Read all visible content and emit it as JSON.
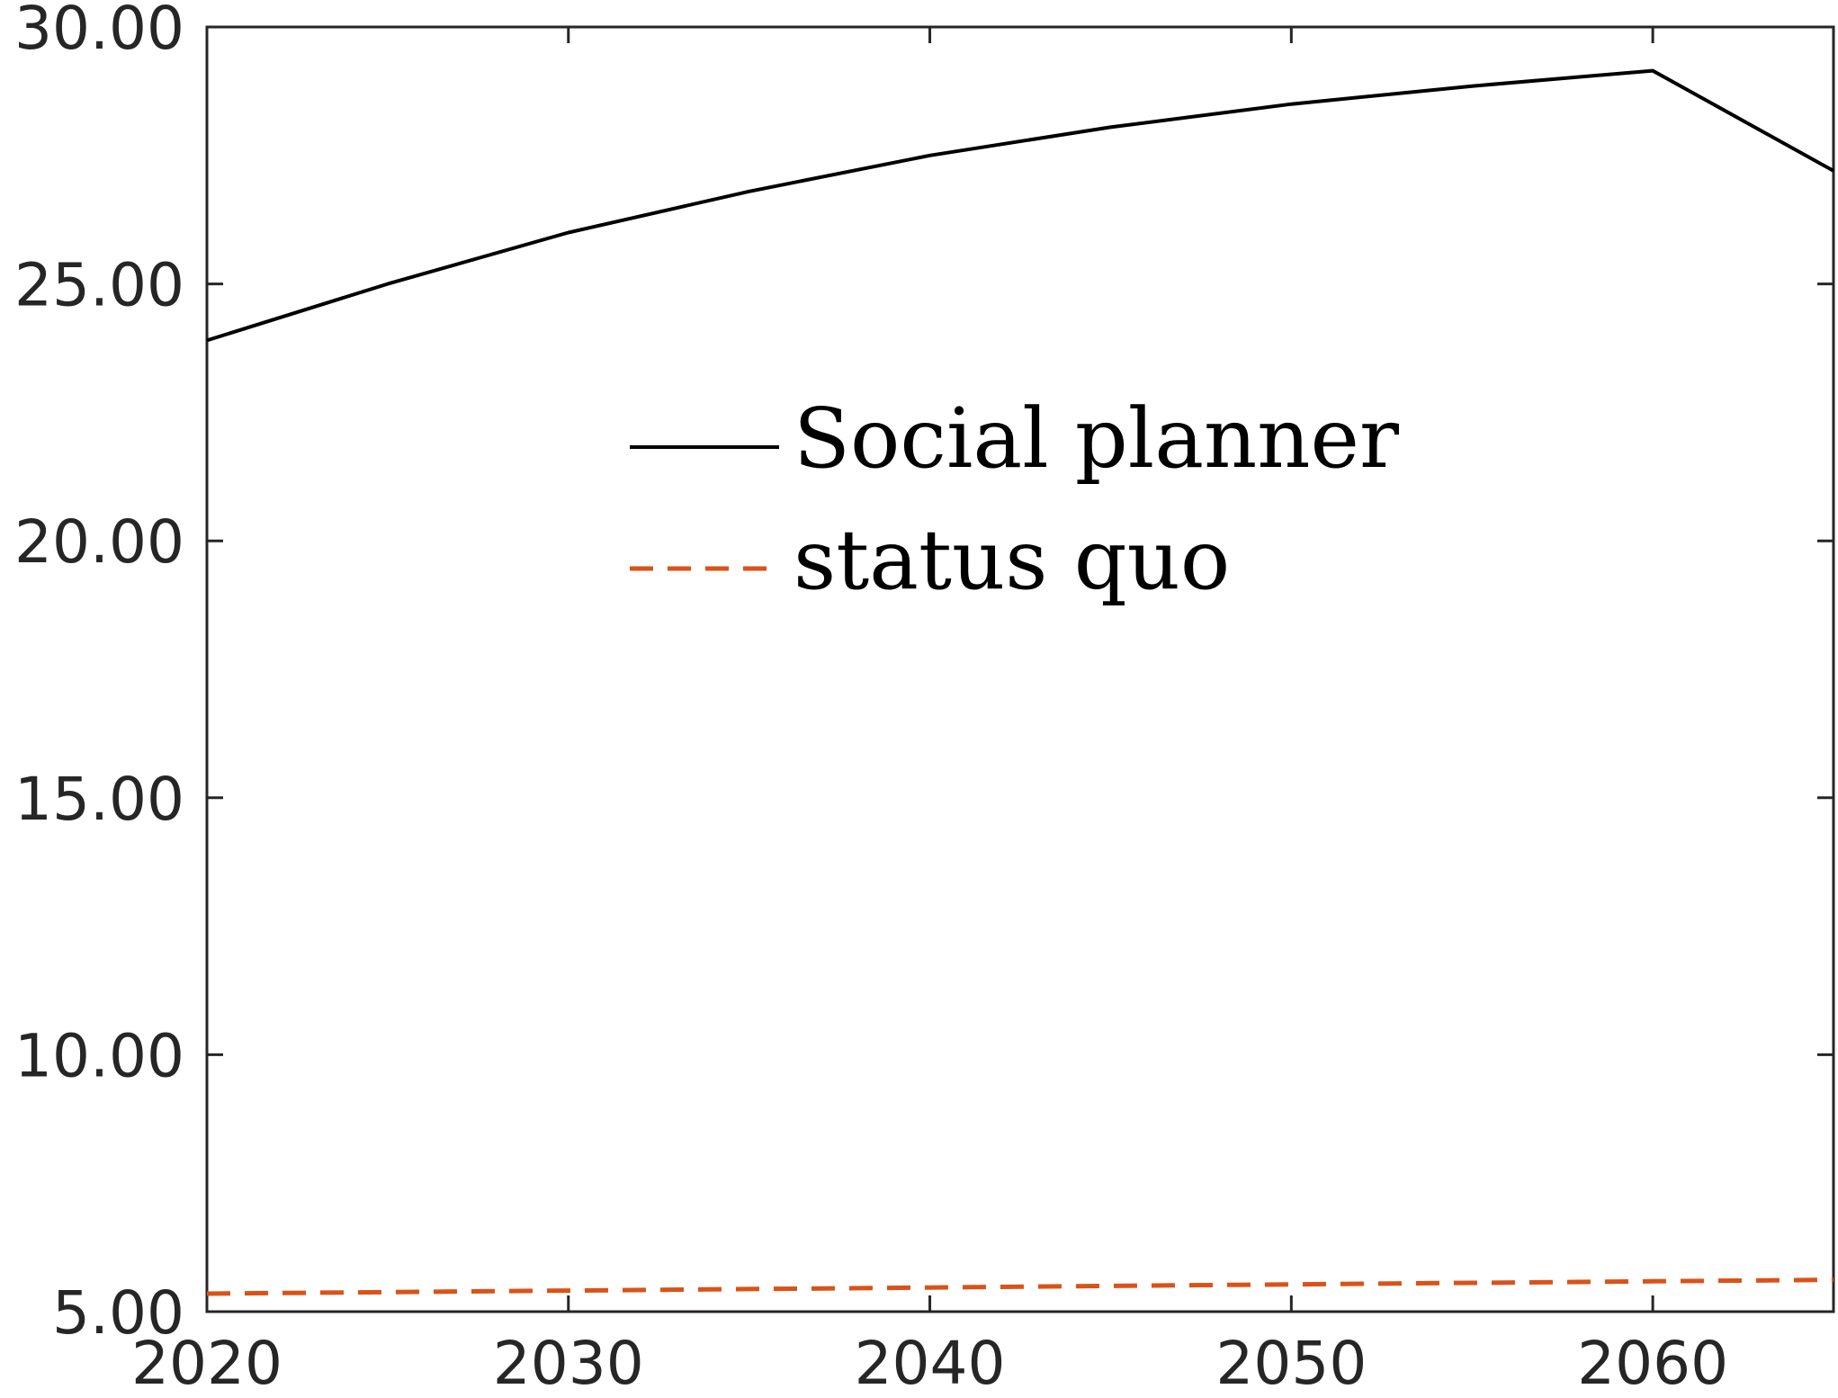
{
  "chart_data": {
    "type": "line",
    "x": [
      2020,
      2025,
      2030,
      2035,
      2040,
      2045,
      2050,
      2055,
      2060,
      2065
    ],
    "series": [
      {
        "name": "Social planner",
        "color": "#000000",
        "dash": "solid",
        "values": [
          23.9,
          25.0,
          26.0,
          26.8,
          27.5,
          28.05,
          28.5,
          28.85,
          29.15,
          27.2
        ]
      },
      {
        "name": "status quo",
        "color": "#D95319",
        "dash": "dashed",
        "values": [
          5.35,
          5.38,
          5.41,
          5.44,
          5.47,
          5.5,
          5.53,
          5.56,
          5.59,
          5.62
        ]
      }
    ],
    "xlim": [
      2020,
      2065
    ],
    "ylim": [
      5,
      30
    ],
    "x_ticks": [
      "2020",
      "2030",
      "2040",
      "2050",
      "2060"
    ],
    "y_ticks": [
      "5.00",
      "10.00",
      "15.00",
      "20.00",
      "25.00",
      "30.00"
    ],
    "grid": false,
    "legend_position": "upper-center"
  }
}
